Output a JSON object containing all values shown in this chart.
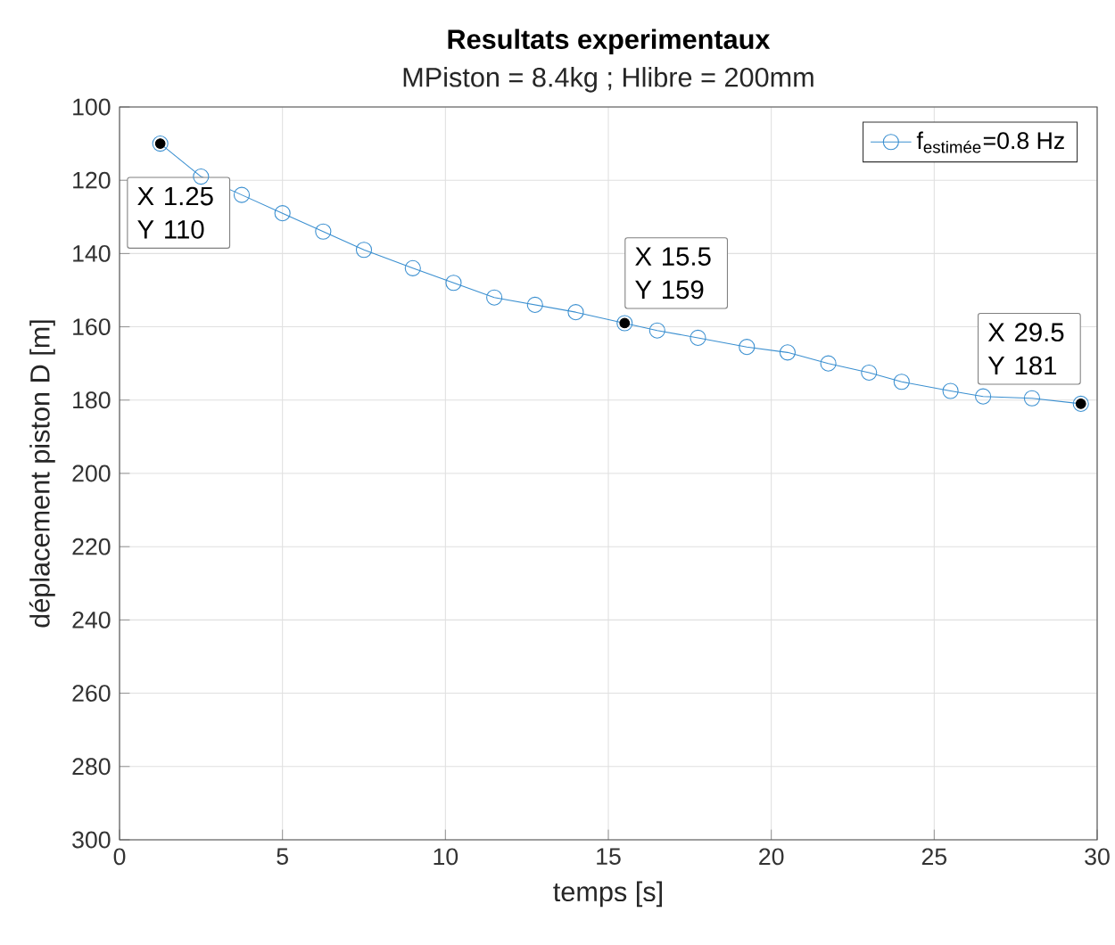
{
  "chart_data": {
    "type": "line",
    "title": "Resultats experimentaux",
    "subtitle": "MPiston = 8.4kg ; Hlibre = 200mm",
    "xlabel": "temps [s]",
    "ylabel": "déplacement piston D [m]",
    "x": [
      1.25,
      2.5,
      3.75,
      5.0,
      6.25,
      7.5,
      9.0,
      10.25,
      11.5,
      12.75,
      14.0,
      15.5,
      16.5,
      17.75,
      19.25,
      20.5,
      21.75,
      23.0,
      24.0,
      25.5,
      26.5,
      28.0,
      29.5
    ],
    "series": [
      {
        "name": "f$_{estimée}$=0.8 Hz",
        "color": "#3a8fd0",
        "values": [
          110,
          119,
          124,
          129,
          134,
          139,
          144,
          148,
          152,
          154,
          156,
          159,
          161,
          163,
          165.5,
          167,
          170,
          172.5,
          175,
          177.5,
          179,
          179.5,
          181
        ]
      }
    ],
    "xlim": [
      0,
      30
    ],
    "ylim": [
      300,
      100
    ],
    "xticks": [
      0,
      5,
      10,
      15,
      20,
      25,
      30
    ],
    "yticks": [
      100,
      120,
      140,
      160,
      180,
      200,
      220,
      240,
      260,
      280,
      300
    ],
    "grid": true,
    "legend": "top right",
    "marker": "circle",
    "line_style": "solid",
    "annotations": [
      {
        "text": "X 1.25 Y 110",
        "x": 1.25,
        "y": 110
      },
      {
        "text": "X 15.5 Y 159",
        "x": 15.5,
        "y": 159
      },
      {
        "text": "X 29.5 Y 181",
        "x": 29.5,
        "y": 181
      }
    ]
  }
}
